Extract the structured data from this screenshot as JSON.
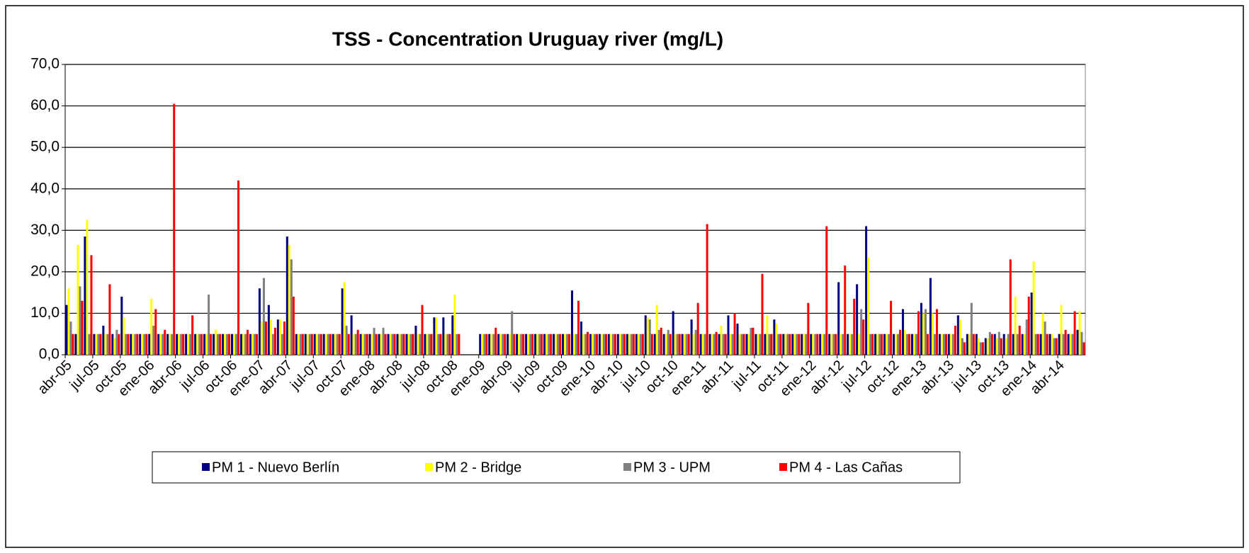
{
  "chart_data": {
    "type": "bar",
    "title": "TSS - Concentration Uruguay river (mg/L)",
    "categories": [
      "abr-05",
      null,
      null,
      "jul-05",
      null,
      null,
      "oct-05",
      null,
      null,
      "ene-06",
      null,
      null,
      "abr-06",
      null,
      null,
      "jul-06",
      null,
      null,
      "oct-06",
      null,
      null,
      "ene-07",
      null,
      null,
      "abr-07",
      null,
      null,
      "jul-07",
      null,
      null,
      "oct-07",
      null,
      null,
      "ene-08",
      null,
      null,
      "abr-08",
      null,
      null,
      "jul-08",
      null,
      null,
      "oct-08",
      null,
      null,
      "ene-09",
      null,
      null,
      "abr-09",
      null,
      null,
      "jul-09",
      null,
      null,
      "oct-09",
      null,
      null,
      "ene-10",
      null,
      null,
      "abr-10",
      null,
      null,
      "jul-10",
      null,
      null,
      "oct-10",
      null,
      null,
      "ene-11",
      null,
      null,
      "abr-11",
      null,
      null,
      "jul-11",
      null,
      null,
      "oct-11",
      null,
      null,
      "ene-12",
      null,
      null,
      "abr-12",
      null,
      null,
      "jul-12",
      null,
      null,
      "oct-12",
      null,
      null,
      "ene-13",
      null,
      null,
      "abr-13",
      null,
      null,
      "jul-13",
      null,
      null,
      "oct-13",
      null,
      null,
      "ene-14",
      null,
      null,
      "abr-14",
      null,
      null
    ],
    "series": [
      {
        "name": "PM 1 - Nuevo Berlín",
        "color": "#000080",
        "values": [
          12,
          5,
          28.5,
          5,
          7,
          5,
          14,
          5,
          5,
          5,
          5,
          5,
          5,
          5,
          5,
          5,
          5,
          5,
          5,
          5,
          5,
          16,
          12,
          8.5,
          28.5,
          5,
          5,
          5,
          5,
          5,
          16,
          9.5,
          5,
          5,
          5,
          5,
          5,
          5,
          7,
          5,
          9,
          9,
          9.5,
          null,
          null,
          5,
          5,
          5,
          5,
          5,
          5,
          5,
          5,
          5,
          5,
          15.5,
          8,
          5,
          5,
          5,
          5,
          5,
          5,
          9.5,
          5,
          5,
          10.5,
          5,
          8.5,
          5,
          5,
          5,
          9.5,
          7.5,
          5,
          5,
          5,
          8.5,
          5,
          5,
          5,
          5,
          5,
          5,
          17.5,
          5,
          17,
          31,
          5,
          5,
          5,
          11,
          5,
          12.5,
          18.5,
          5,
          5,
          9.5,
          5,
          5,
          4,
          5,
          5,
          5,
          5,
          15,
          5,
          5,
          5,
          5,
          6
        ]
      },
      {
        "name": "PM 2 - Bridge",
        "color": "#ffff00",
        "values": [
          16,
          26.5,
          32.5,
          5,
          5,
          4,
          9,
          5,
          5,
          13.5,
          5,
          5,
          5,
          5,
          5,
          5,
          6,
          5,
          5,
          5,
          5,
          8,
          8.5,
          8.5,
          26.5,
          5,
          5,
          5,
          5,
          5,
          17.5,
          5,
          5,
          5,
          5,
          5,
          5,
          5,
          5,
          5,
          9,
          5,
          14.5,
          null,
          null,
          5,
          5,
          5,
          5,
          5,
          5,
          5,
          5,
          5,
          5,
          5,
          5,
          5,
          5,
          5,
          5,
          5,
          5,
          9,
          12,
          5,
          5,
          5,
          5,
          5,
          5,
          7,
          5,
          5,
          5,
          5,
          9.5,
          7.5,
          5,
          5,
          5,
          5,
          5,
          5,
          5,
          5,
          5,
          23.5,
          5,
          5,
          5,
          6,
          5,
          10,
          10,
          5,
          5,
          8.5,
          5,
          4,
          4,
          4,
          4,
          14,
          5,
          22.5,
          10,
          5,
          12,
          5,
          10.5
        ]
      },
      {
        "name": "PM 3 - UPM",
        "color": "#808080",
        "values": [
          8,
          16.5,
          5,
          5,
          5,
          6,
          5,
          5,
          5,
          7,
          5,
          5,
          5,
          5,
          5,
          14.5,
          5,
          5,
          5,
          5,
          5,
          18.5,
          5,
          5,
          23,
          5,
          5,
          5,
          5,
          5,
          7,
          5,
          5,
          6.5,
          6.5,
          5,
          5,
          5,
          5,
          5,
          5,
          5,
          5,
          null,
          null,
          5,
          5,
          5,
          10.5,
          5,
          5,
          5,
          5,
          5,
          5,
          5,
          5,
          5,
          5,
          5,
          5,
          5,
          5,
          8.5,
          6,
          6,
          5,
          5,
          6,
          5,
          5,
          5,
          5,
          5,
          6.5,
          5,
          5,
          5,
          5,
          5,
          5,
          5,
          5,
          5,
          5,
          5,
          11,
          5,
          5,
          5,
          5,
          5,
          5,
          11,
          5,
          5,
          5,
          4,
          12.5,
          3,
          5.5,
          5.5,
          5,
          5,
          8.5,
          5,
          8,
          4,
          5,
          5,
          5.5
        ]
      },
      {
        "name": "PM 4 - Las Cañas",
        "color": "#ff0000",
        "values": [
          5,
          13,
          24,
          5,
          17,
          5,
          5,
          5,
          5,
          11,
          6,
          60.5,
          5,
          9.5,
          5,
          5,
          5,
          5,
          42,
          6,
          5,
          8,
          6.5,
          8,
          14,
          5,
          5,
          5,
          5,
          5,
          5,
          6,
          5,
          5,
          5,
          5,
          5,
          5,
          12,
          5,
          5,
          5,
          5,
          null,
          null,
          5,
          6.5,
          5,
          5,
          5,
          5,
          5,
          5,
          5,
          5,
          13,
          5.5,
          5,
          5,
          5,
          5,
          5,
          5,
          5,
          6.5,
          5,
          5,
          5,
          12.5,
          31.5,
          5.5,
          5,
          10,
          5,
          6.5,
          19.5,
          5,
          5,
          5,
          5,
          12.5,
          5,
          31,
          5,
          21.5,
          13.5,
          8.5,
          5,
          5,
          13,
          6,
          5,
          10.5,
          5,
          11,
          5,
          7,
          3,
          5,
          3,
          5,
          4,
          23,
          7,
          14,
          5,
          5,
          4,
          6,
          10.5,
          3
        ]
      }
    ],
    "ylim": [
      0,
      70
    ],
    "yticks": [
      {
        "value": 0,
        "label": "0,0"
      },
      {
        "value": 10,
        "label": "10,0"
      },
      {
        "value": 20,
        "label": "20,0"
      },
      {
        "value": 30,
        "label": "30,0"
      },
      {
        "value": 40,
        "label": "40,0"
      },
      {
        "value": 50,
        "label": "50,0"
      },
      {
        "value": 60,
        "label": "60,0"
      },
      {
        "value": 70,
        "label": "70,0"
      }
    ],
    "grid": true,
    "legend": "bottom"
  }
}
